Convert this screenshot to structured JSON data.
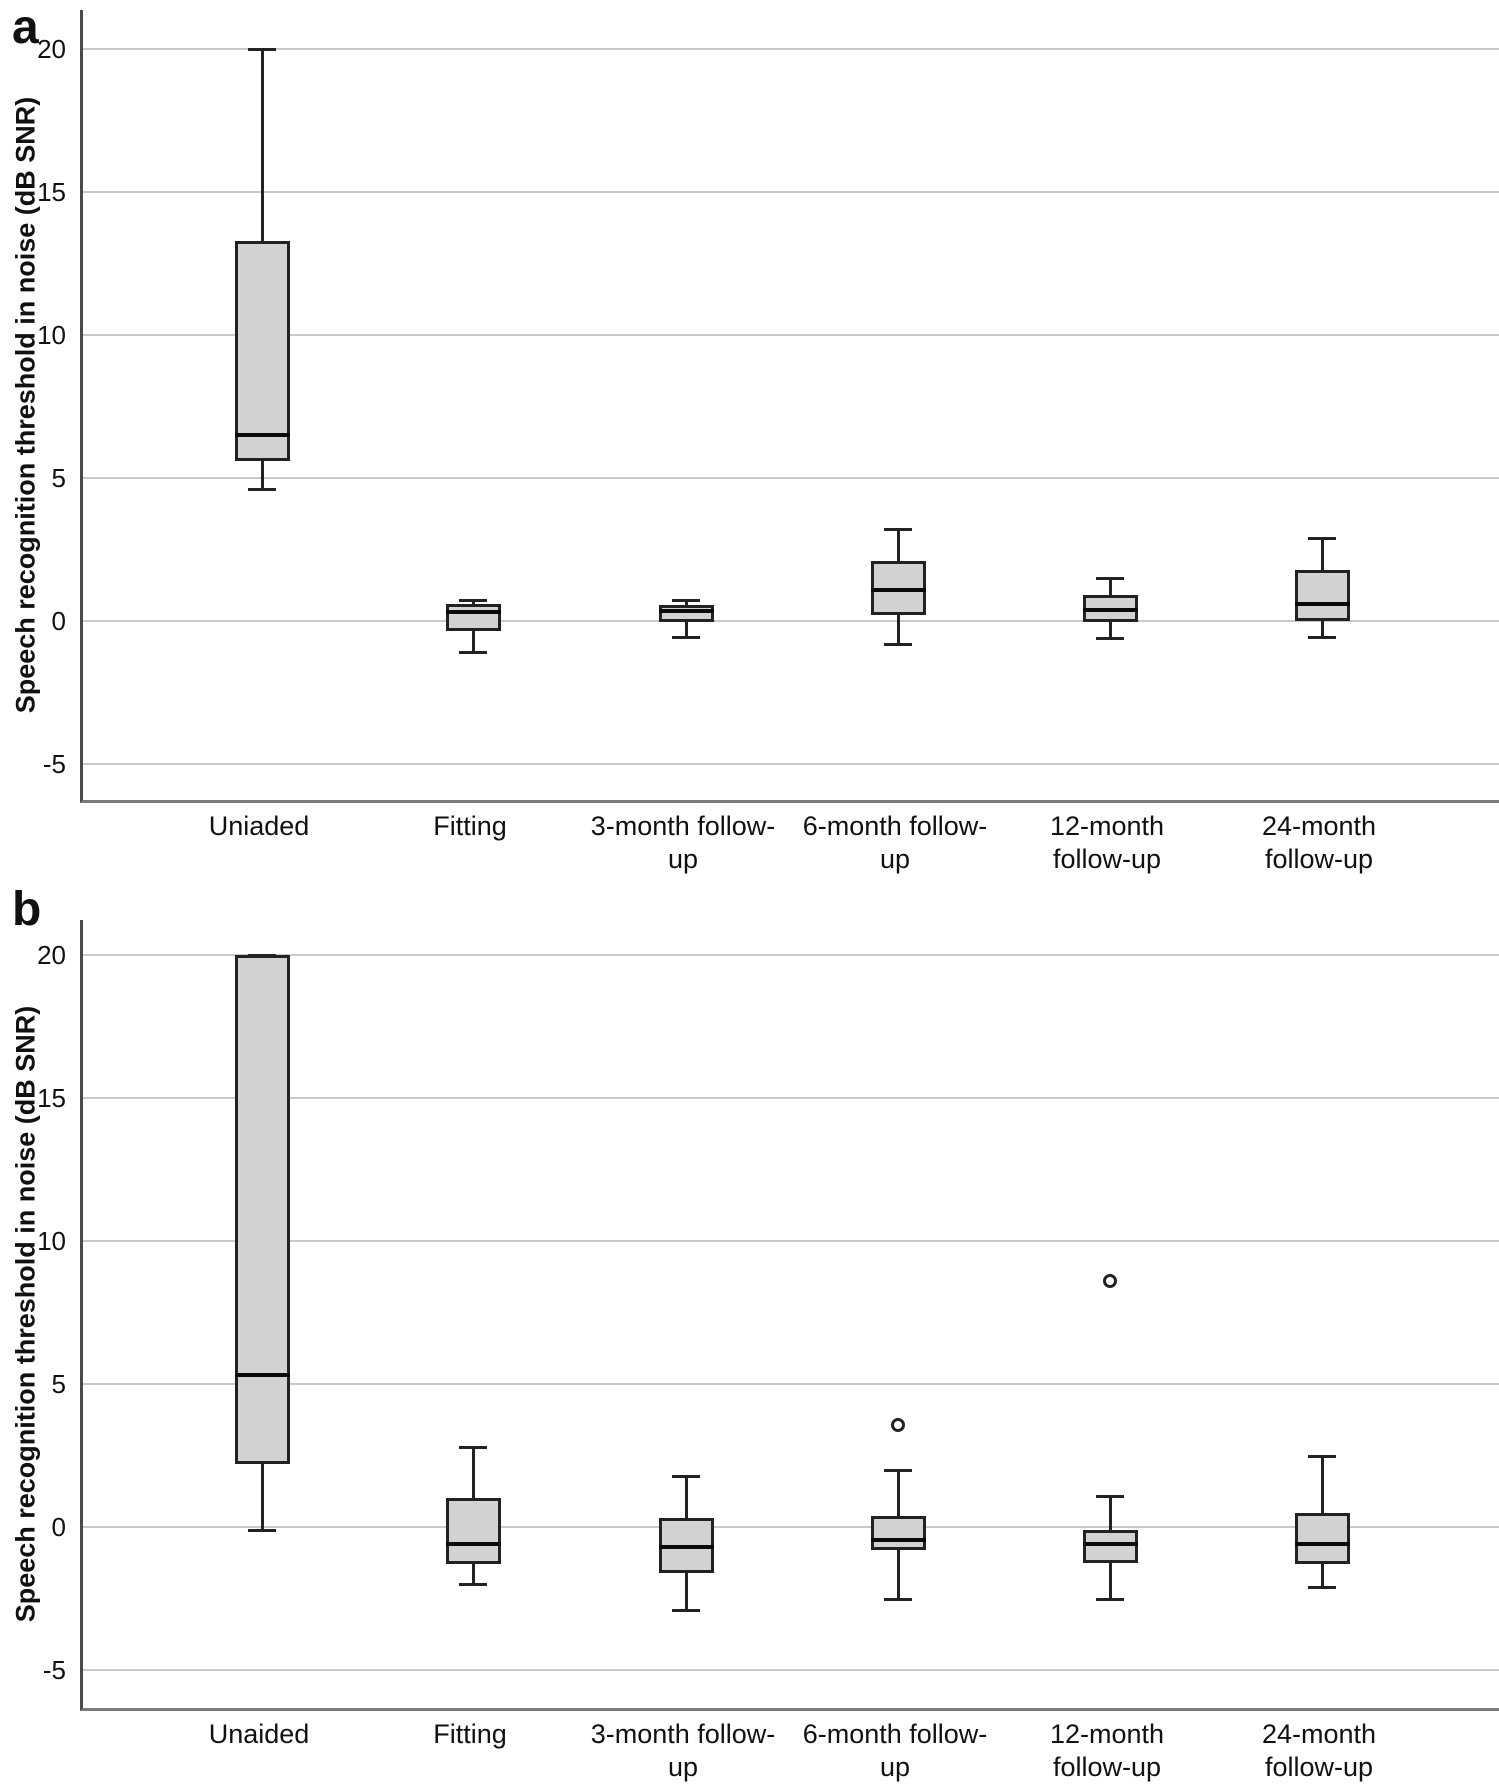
{
  "figure": {
    "background": "#ffffff",
    "box_fill": "#d2d2d2",
    "box_stroke": "#222222",
    "median_color": "#0a0a0a",
    "gridline_color": "#c9c9c9",
    "axis_color": "#4a4a4a"
  },
  "chart_data": [
    {
      "type": "boxplot",
      "panel_label": "a",
      "ylabel": "Speech recognition threshold in noise (dB SNR)",
      "xlabel": "",
      "yticks": [
        20,
        15,
        10,
        5,
        0,
        -5
      ],
      "ylim": [
        -6.4,
        21.4
      ],
      "grid": true,
      "legend": "none",
      "categories": [
        "Uniaded",
        "Fitting",
        "3-month follow-up",
        "6-month follow-up",
        "12-month follow-up",
        "24-month follow-up"
      ],
      "series": [
        {
          "label": "Uniaded",
          "label_lines": [
            "Uniaded"
          ],
          "whisker_low": 4.6,
          "q1": 5.6,
          "median": 6.5,
          "q3": 13.3,
          "whisker_high": 20.0,
          "outliers": []
        },
        {
          "label": "Fitting",
          "label_lines": [
            "Fitting"
          ],
          "whisker_low": -1.1,
          "q1": -0.35,
          "median": 0.3,
          "q3": 0.6,
          "whisker_high": 0.75,
          "outliers": []
        },
        {
          "label": "3-month follow-up",
          "label_lines": [
            "3-month follow-",
            "up"
          ],
          "whisker_low": -0.55,
          "q1": -0.05,
          "median": 0.35,
          "q3": 0.55,
          "whisker_high": 0.75,
          "outliers": []
        },
        {
          "label": "6-month follow-up",
          "label_lines": [
            "6-month follow-",
            "up"
          ],
          "whisker_low": -0.8,
          "q1": 0.2,
          "median": 1.1,
          "q3": 2.1,
          "whisker_high": 3.2,
          "outliers": []
        },
        {
          "label": "12-month follow-up",
          "label_lines": [
            "12-month",
            "follow-up"
          ],
          "whisker_low": -0.6,
          "q1": -0.05,
          "median": 0.4,
          "q3": 0.9,
          "whisker_high": 1.5,
          "outliers": []
        },
        {
          "label": "24-month follow-up",
          "label_lines": [
            "24-month",
            "follow-up"
          ],
          "whisker_low": -0.55,
          "q1": 0.0,
          "median": 0.6,
          "q3": 1.8,
          "whisker_high": 2.9,
          "outliers": []
        }
      ]
    },
    {
      "type": "boxplot",
      "panel_label": "b",
      "ylabel": "Speech recognition threshold in noise (dB SNR)",
      "xlabel": "",
      "yticks": [
        20,
        15,
        10,
        5,
        0,
        -5
      ],
      "ylim": [
        -6.4,
        21.2
      ],
      "grid": true,
      "legend": "none",
      "categories": [
        "Unaided",
        "Fitting",
        "3-month follow-up",
        "6-month follow-up",
        "12-month follow-up",
        "24-month follow-up"
      ],
      "series": [
        {
          "label": "Unaided",
          "label_lines": [
            "Unaided"
          ],
          "whisker_low": -0.1,
          "q1": 2.2,
          "median": 5.3,
          "q3": 20.0,
          "whisker_high": 20.0,
          "outliers": []
        },
        {
          "label": "Fitting",
          "label_lines": [
            "Fitting"
          ],
          "whisker_low": -2.0,
          "q1": -1.3,
          "median": -0.6,
          "q3": 1.0,
          "whisker_high": 2.8,
          "outliers": []
        },
        {
          "label": "3-month follow-up",
          "label_lines": [
            "3-month follow-",
            "up"
          ],
          "whisker_low": -2.9,
          "q1": -1.6,
          "median": -0.7,
          "q3": 0.3,
          "whisker_high": 1.8,
          "outliers": []
        },
        {
          "label": "6-month follow-up",
          "label_lines": [
            "6-month follow-",
            "up"
          ],
          "whisker_low": -2.5,
          "q1": -0.8,
          "median": -0.45,
          "q3": 0.4,
          "whisker_high": 2.0,
          "outliers": [
            3.55
          ]
        },
        {
          "label": "12-month follow-up",
          "label_lines": [
            "12-month",
            "follow-up"
          ],
          "whisker_low": -2.5,
          "q1": -1.25,
          "median": -0.6,
          "q3": -0.1,
          "whisker_high": 1.1,
          "outliers": [
            8.6
          ]
        },
        {
          "label": "24-month follow-up",
          "label_lines": [
            "24-month",
            "follow-up"
          ],
          "whisker_low": -2.1,
          "q1": -1.3,
          "median": -0.6,
          "q3": 0.5,
          "whisker_high": 2.5,
          "outliers": []
        }
      ]
    }
  ]
}
